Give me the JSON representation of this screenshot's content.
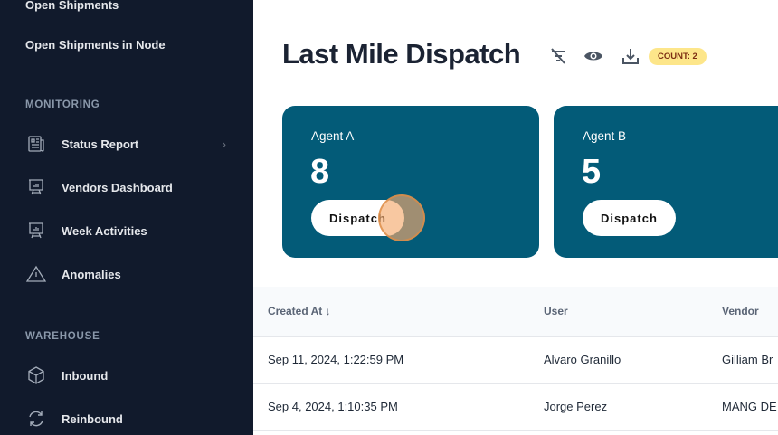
{
  "sidebar": {
    "links": [
      "Open Shipments",
      "Open Shipments in Node"
    ],
    "monitoring": {
      "title": "MONITORING",
      "items": [
        {
          "label": "Status Report",
          "icon": "newspaper-icon"
        },
        {
          "label": "Vendors Dashboard",
          "icon": "presentation-chart-icon"
        },
        {
          "label": "Week Activities",
          "icon": "presentation-chart-icon"
        },
        {
          "label": "Anomalies",
          "icon": "warning-icon"
        }
      ]
    },
    "warehouse": {
      "title": "WAREHOUSE",
      "items": [
        {
          "label": "Inbound",
          "icon": "cube-icon"
        },
        {
          "label": "Reinbound",
          "icon": "refresh-icon"
        }
      ]
    }
  },
  "header": {
    "title": "Last Mile Dispatch",
    "count": "COUNT: 2"
  },
  "agents": [
    {
      "name": "Agent A",
      "count": "8",
      "button": "Dispatch"
    },
    {
      "name": "Agent B",
      "count": "5",
      "button": "Dispatch"
    }
  ],
  "table": {
    "columns": [
      "Created At",
      "User",
      "Vendor"
    ],
    "rows": [
      [
        "Sep 11, 2024, 1:22:59 PM",
        "Alvaro Granillo",
        "Gilliam Br"
      ],
      [
        "Sep 4, 2024, 1:10:35 PM",
        "Jorge Perez",
        "MANG DE"
      ]
    ]
  },
  "colors": {
    "sidebar": "#111a2c",
    "card": "#035b78",
    "badge": "#fde68a"
  }
}
